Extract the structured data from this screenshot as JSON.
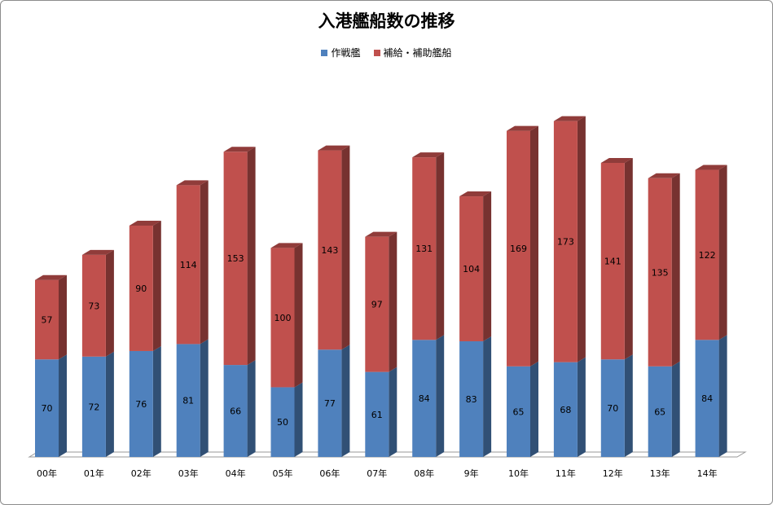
{
  "chart_data": {
    "type": "bar",
    "stacked": true,
    "three_d": true,
    "title": "入港艦船数の推移",
    "categories": [
      "00年",
      "01年",
      "02年",
      "03年",
      "04年",
      "05年",
      "06年",
      "07年",
      "08年",
      "9年",
      "10年",
      "11年",
      "12年",
      "13年",
      "14年"
    ],
    "series": [
      {
        "name": "作戦艦",
        "color": "#4f81bd",
        "values": [
          70,
          72,
          76,
          81,
          66,
          50,
          77,
          61,
          84,
          83,
          65,
          68,
          70,
          65,
          84
        ]
      },
      {
        "name": "補給・補助艦船",
        "color": "#c0504d",
        "values": [
          57,
          73,
          90,
          114,
          153,
          100,
          143,
          97,
          131,
          104,
          169,
          173,
          141,
          135,
          122
        ]
      }
    ],
    "ylim": [
      0,
      241
    ],
    "data_labels": true,
    "legend_position": "top",
    "grid": false
  }
}
